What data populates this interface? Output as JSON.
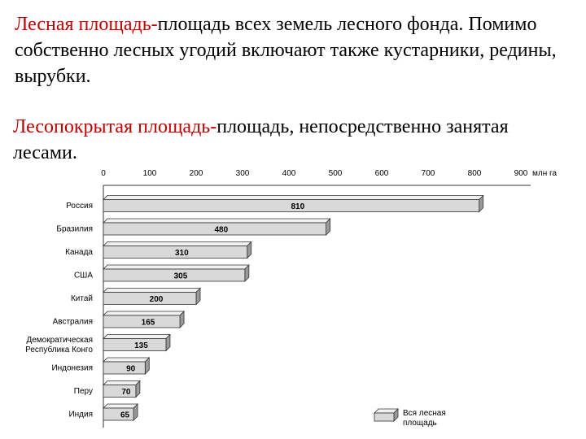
{
  "definitions": [
    {
      "term": "Лесная площадь-",
      "text": "площадь всех земель лесного фонда. Помимо собственно лесных угодий включают также кустарники, редины, вырубки."
    },
    {
      "term": "Лесопокрытая площадь-",
      "text": "площадь, непосредственно занятая лесами."
    }
  ],
  "colors": {
    "term": "#c00000",
    "bar_face": "#d9d9d9",
    "bar_top": "#f2f2f2",
    "bar_side": "#9a9a9a",
    "bar_outline": "#333333",
    "text": "#000000"
  },
  "chart_data": {
    "type": "bar",
    "orientation": "horizontal",
    "categories": [
      "Россия",
      "Бразилия",
      "Канада",
      "США",
      "Китай",
      "Австралия",
      "Демократическая\nРеспублика Конго",
      "Индонезия",
      "Перу",
      "Индия"
    ],
    "values": [
      810,
      480,
      310,
      305,
      200,
      165,
      135,
      90,
      70,
      65
    ],
    "value_labels": [
      "810",
      "480",
      "310",
      "305",
      "200",
      "165",
      "135",
      "90",
      "70",
      "65"
    ],
    "x_ticks": [
      "0",
      "100",
      "200",
      "300",
      "400",
      "500",
      "600",
      "700",
      "800",
      "900"
    ],
    "x_tick_values": [
      0,
      100,
      200,
      300,
      400,
      500,
      600,
      700,
      800,
      900
    ],
    "unit": "млн га",
    "xlim": [
      0,
      900
    ],
    "legend": {
      "label": "Вся лесная\nплощадь",
      "placement": "bottom-right"
    },
    "grid": false,
    "style": "3d-bars"
  }
}
